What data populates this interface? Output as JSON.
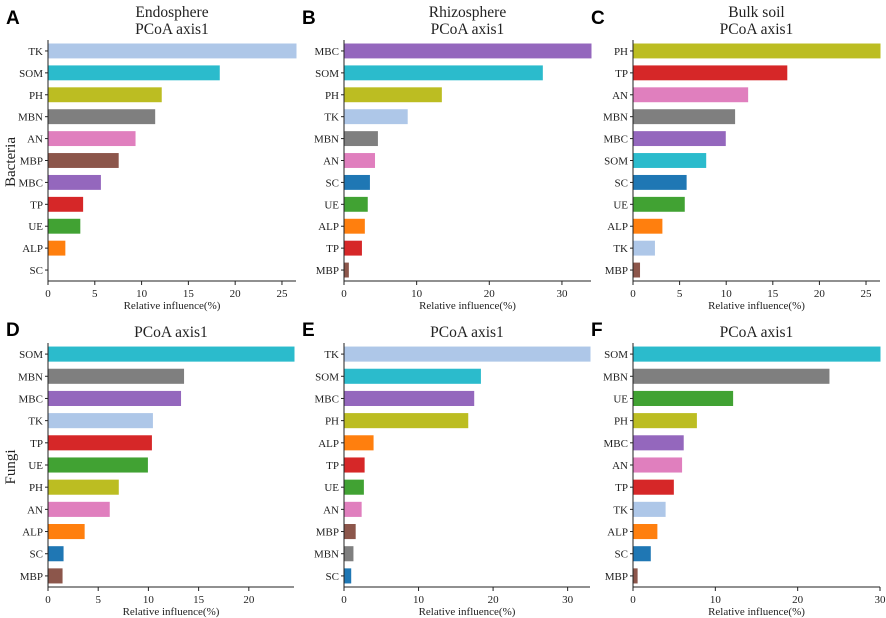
{
  "colors": {
    "TK": "#aec7e8",
    "SOM": "#2bbbcc",
    "PH": "#bcbd22",
    "MBN": "#7f7f7f",
    "AN": "#e07fbe",
    "MBP": "#8c564b",
    "MBC": "#9467bd",
    "TP": "#d62728",
    "UE": "#41a233",
    "ALP": "#ff7f0e",
    "SC": "#1f77b4"
  },
  "row_labels": [
    "Bacteria",
    "Fungi"
  ],
  "chart_data": [
    {
      "panel": "A",
      "type": "bar",
      "orientation": "horizontal",
      "title_top": "Endosphere",
      "title": "PCoA axis1",
      "xlabel": "Relative influence(%)",
      "xlim": [
        0,
        26.5
      ],
      "xticks": [
        0,
        5,
        10,
        15,
        20,
        25
      ],
      "categories": [
        "TK",
        "SOM",
        "PH",
        "MBN",
        "AN",
        "MBP",
        "MBC",
        "TP",
        "UE",
        "ALP",
        "SC"
      ],
      "values": [
        26.5,
        18.3,
        12.1,
        11.4,
        9.3,
        7.5,
        5.6,
        3.7,
        3.4,
        1.8,
        0
      ]
    },
    {
      "panel": "B",
      "type": "bar",
      "orientation": "horizontal",
      "title_top": "Rhizosphere",
      "title": "PCoA axis1",
      "xlabel": "Relative influence(%)",
      "xlim": [
        0,
        34
      ],
      "xticks": [
        0,
        10,
        20,
        30
      ],
      "categories": [
        "MBC",
        "SOM",
        "PH",
        "TK",
        "MBN",
        "AN",
        "SC",
        "UE",
        "ALP",
        "TP",
        "MBP"
      ],
      "values": [
        34.0,
        27.3,
        13.4,
        8.7,
        4.6,
        4.2,
        3.5,
        3.2,
        2.8,
        2.4,
        0.6
      ]
    },
    {
      "panel": "C",
      "type": "bar",
      "orientation": "horizontal",
      "title_top": "Bulk soil",
      "title": "PCoA axis1",
      "xlabel": "Relative influence(%)",
      "xlim": [
        0,
        26.5
      ],
      "xticks": [
        0,
        5,
        10,
        15,
        20,
        25
      ],
      "categories": [
        "PH",
        "TP",
        "AN",
        "MBN",
        "MBC",
        "SOM",
        "SC",
        "UE",
        "ALP",
        "TK",
        "MBP"
      ],
      "values": [
        26.5,
        16.5,
        12.3,
        10.9,
        9.9,
        7.8,
        5.7,
        5.5,
        3.1,
        2.3,
        0.7
      ]
    },
    {
      "panel": "D",
      "type": "bar",
      "orientation": "horizontal",
      "title_top": "",
      "title": "PCoA axis1",
      "xlabel": "Relative influence(%)",
      "xlim": [
        0,
        24.5
      ],
      "xticks": [
        0,
        5,
        10,
        15,
        20
      ],
      "categories": [
        "SOM",
        "MBN",
        "MBC",
        "TK",
        "TP",
        "UE",
        "PH",
        "AN",
        "ALP",
        "SC",
        "MBP"
      ],
      "values": [
        24.5,
        13.5,
        13.2,
        10.4,
        10.3,
        9.9,
        7.0,
        6.1,
        3.6,
        1.5,
        1.4
      ]
    },
    {
      "panel": "E",
      "type": "bar",
      "orientation": "horizontal",
      "title_top": "",
      "title": "PCoA axis1",
      "xlabel": "Relative influence(%)",
      "xlim": [
        0,
        33
      ],
      "xticks": [
        0,
        10,
        20,
        30
      ],
      "categories": [
        "TK",
        "SOM",
        "MBC",
        "PH",
        "ALP",
        "TP",
        "UE",
        "AN",
        "MBP",
        "MBN",
        "SC"
      ],
      "values": [
        33.0,
        18.3,
        17.4,
        16.6,
        3.9,
        2.7,
        2.6,
        2.3,
        1.5,
        1.2,
        0.9
      ]
    },
    {
      "panel": "F",
      "type": "bar",
      "orientation": "horizontal",
      "title_top": "",
      "title": "PCoA axis1",
      "xlabel": "Relative influence(%)",
      "xlim": [
        0,
        30
      ],
      "xticks": [
        0,
        10,
        20,
        30
      ],
      "categories": [
        "SOM",
        "MBN",
        "UE",
        "PH",
        "MBC",
        "AN",
        "TP",
        "TK",
        "ALP",
        "SC",
        "MBP"
      ],
      "values": [
        30.0,
        23.8,
        12.1,
        7.7,
        6.1,
        5.9,
        4.9,
        3.9,
        2.9,
        2.1,
        0.5
      ]
    }
  ]
}
